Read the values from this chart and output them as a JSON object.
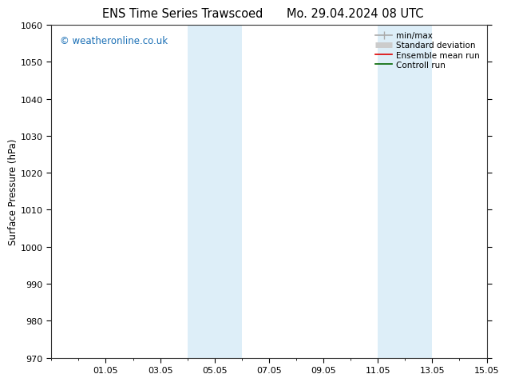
{
  "title_left": "ENS Time Series Trawscoed",
  "title_right": "Mo. 29.04.2024 08 UTC",
  "ylabel": "Surface Pressure (hPa)",
  "ylim": [
    970,
    1060
  ],
  "yticks": [
    970,
    980,
    990,
    1000,
    1010,
    1020,
    1030,
    1040,
    1050,
    1060
  ],
  "xtick_labels": [
    "01.05",
    "03.05",
    "05.05",
    "07.05",
    "09.05",
    "11.05",
    "13.05",
    "15.05"
  ],
  "xtick_positions": [
    3,
    5,
    7,
    9,
    11,
    13,
    15,
    17
  ],
  "xlim": [
    1,
    17
  ],
  "weekend_bands": [
    {
      "start": 6,
      "end": 8
    },
    {
      "start": 13,
      "end": 15
    }
  ],
  "band_color": "#ddeef8",
  "watermark": "© weatheronline.co.uk",
  "watermark_color": "#1a6fb5",
  "legend_items": [
    {
      "label": "min/max",
      "color": "#aaaaaa",
      "lw": 1.2,
      "style": "line_with_caps"
    },
    {
      "label": "Standard deviation",
      "color": "#cccccc",
      "lw": 5,
      "style": "thick"
    },
    {
      "label": "Ensemble mean run",
      "color": "#dd0000",
      "lw": 1.2,
      "style": "line"
    },
    {
      "label": "Controll run",
      "color": "#006600",
      "lw": 1.2,
      "style": "line"
    }
  ],
  "background_color": "#ffffff",
  "title_fontsize": 10.5,
  "axis_label_fontsize": 8.5,
  "tick_fontsize": 8
}
